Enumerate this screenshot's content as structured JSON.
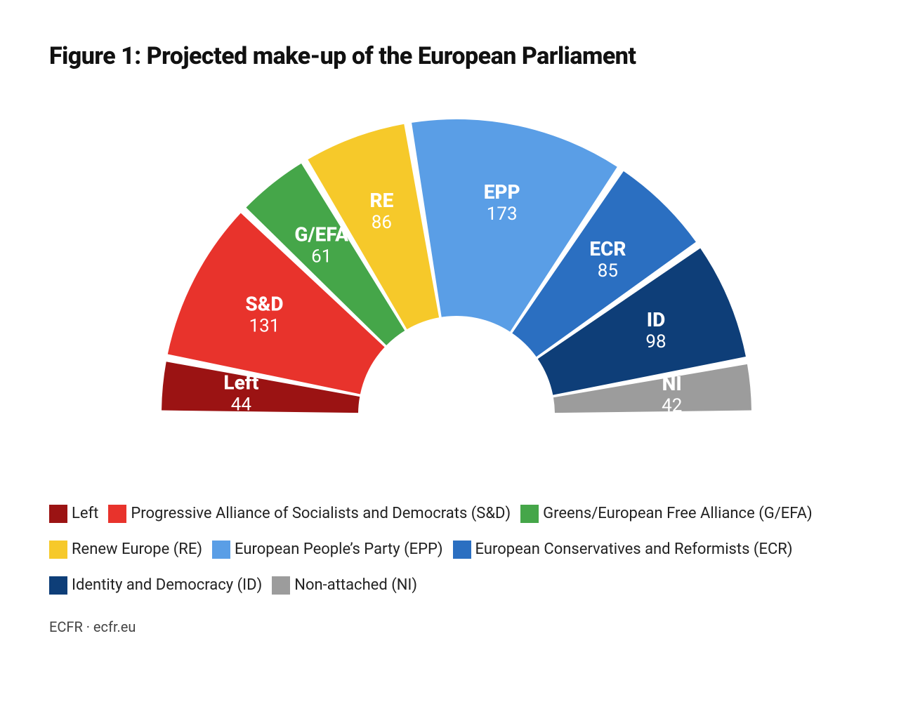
{
  "title": "Figure 1: Projected make-up of the European Parliament",
  "chart": {
    "type": "hemicycle",
    "inner_radius": 140,
    "outer_radius": 420,
    "gap_deg": 1.5,
    "background_color": "#ffffff",
    "label_name_fontsize": 28,
    "label_val_fontsize": 26,
    "label_color": "#ffffff",
    "slices": [
      {
        "key": "left",
        "label": "Left",
        "value": 44,
        "color": "#9b1313",
        "legend": "Left"
      },
      {
        "key": "sd",
        "label": "S&D",
        "value": 131,
        "color": "#e8332c",
        "legend": "Progressive Alliance of Socialists and Democrats (S&D)"
      },
      {
        "key": "gefa",
        "label": "G/EFA",
        "value": 61,
        "color": "#45a649",
        "legend": "Greens/European Free Alliance (G/EFA)"
      },
      {
        "key": "re",
        "label": "RE",
        "value": 86,
        "color": "#f6c92a",
        "legend": "Renew Europe (RE)"
      },
      {
        "key": "epp",
        "label": "EPP",
        "value": 173,
        "color": "#5a9ee6",
        "legend": "European People’s Party (EPP)"
      },
      {
        "key": "ecr",
        "label": "ECR",
        "value": 85,
        "color": "#2b6fc1",
        "legend": "European Conservatives and Reformists (ECR)"
      },
      {
        "key": "id",
        "label": "ID",
        "value": 98,
        "color": "#0e3e78",
        "legend": "Identity and Democracy (ID)"
      },
      {
        "key": "ni",
        "label": "NI",
        "value": 42,
        "color": "#9c9c9c",
        "legend": "Non-attached (NI)"
      }
    ]
  },
  "legend_rows": [
    [
      "left",
      "sd",
      "gefa"
    ],
    [
      "re",
      "epp",
      "ecr"
    ],
    [
      "id",
      "ni"
    ]
  ],
  "source": "ECFR · ecfr.eu"
}
